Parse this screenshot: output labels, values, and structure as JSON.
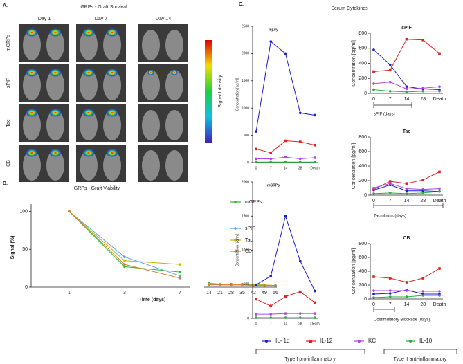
{
  "panel_a": {
    "label": "A.",
    "title": "GRPs - Graft Survival",
    "days": [
      "Day 1",
      "Day 7",
      "Day 14"
    ],
    "rows": [
      "mGRPs",
      "sPIF",
      "Tac",
      "CB"
    ],
    "colorbar_label": "Signal Intensity"
  },
  "panel_b_label": "B.",
  "panel_c_label": "C.",
  "panel_c_title": "Serum Cytokines",
  "legend": {
    "items": [
      {
        "name": "IL- 1α",
        "color": "#1a1ad4"
      },
      {
        "name": "IL-12",
        "color": "#e02222"
      },
      {
        "name": "KC",
        "color": "#b444e6"
      },
      {
        "name": "IL-10",
        "color": "#22b03a"
      }
    ],
    "groups": [
      "Type I pro-inflammatory",
      "Type II anti-inflammatory"
    ]
  },
  "chart_data": [
    {
      "type": "line",
      "title": "GRPs - Graft Viability",
      "y_label": "Signal (%)",
      "x_label": "Time (days)",
      "categories": [
        "1",
        "3",
        "7",
        "14",
        "21",
        "28",
        "35",
        "42",
        "49",
        "56"
      ],
      "ylim": [
        0,
        105
      ],
      "yticks": [
        0,
        50,
        100
      ],
      "series": [
        {
          "name": "mGRPs",
          "color": "#2eb82e",
          "values": [
            100,
            27,
            20,
            5,
            4,
            4,
            4,
            3,
            3,
            2
          ]
        },
        {
          "name": "sPIF",
          "color": "#5aa0e6",
          "values": [
            100,
            40,
            15,
            4,
            3,
            3,
            3,
            3,
            2,
            2
          ]
        },
        {
          "name": "Tac",
          "color": "#c8b400",
          "values": [
            100,
            35,
            30,
            4,
            4,
            3,
            3,
            3,
            3,
            2
          ]
        },
        {
          "name": "CB",
          "color": "#e07a20",
          "values": [
            100,
            30,
            12,
            3,
            3,
            3,
            3,
            2,
            2,
            2
          ]
        }
      ]
    },
    {
      "type": "line",
      "title": "Injury",
      "y_label": "Concentration [pg/ml]",
      "categories": [
        "0",
        "7",
        "14",
        "28",
        "Death"
      ],
      "ylim": [
        0,
        2500
      ],
      "yticks": [
        0,
        500,
        1000,
        1500,
        2000,
        2500
      ],
      "series": [
        {
          "values": [
            570,
            2220,
            2000,
            910,
            870
          ]
        },
        {
          "values": [
            250,
            180,
            400,
            380,
            320
          ]
        },
        {
          "values": [
            70,
            70,
            100,
            70,
            90
          ]
        },
        {
          "values": [
            10,
            10,
            10,
            10,
            10
          ]
        }
      ]
    },
    {
      "type": "line",
      "title": "mGRPs",
      "y_label": "Concentration [pg/ml]",
      "categories": [
        "0",
        "7",
        "14",
        "28",
        "Death"
      ],
      "ylim": [
        0,
        2000
      ],
      "yticks": [
        0,
        500,
        1000,
        1500,
        2000
      ],
      "series": [
        {
          "values": [
            490,
            620,
            1500,
            840,
            400
          ]
        },
        {
          "values": [
            280,
            180,
            320,
            390,
            230
          ]
        },
        {
          "values": [
            60,
            60,
            70,
            70,
            70
          ]
        },
        {
          "values": [
            10,
            10,
            10,
            10,
            10
          ]
        }
      ]
    },
    {
      "type": "line",
      "title": "sPIF",
      "y_label": "Concentration [pg/ml]",
      "x_label": "sPIF (days)",
      "categories": [
        "0",
        "7",
        "14",
        "28",
        "Death"
      ],
      "ylim": [
        0,
        800
      ],
      "yticks": [
        0,
        200,
        400,
        600,
        800
      ],
      "series": [
        {
          "values": [
            580,
            380,
            90,
            60,
            50
          ]
        },
        {
          "values": [
            290,
            310,
            720,
            710,
            530
          ]
        },
        {
          "values": [
            130,
            150,
            60,
            70,
            90
          ]
        },
        {
          "values": [
            50,
            30,
            20,
            30,
            30
          ]
        }
      ]
    },
    {
      "type": "line",
      "title": "Tac",
      "y_label": "Concentration [pg/ml]",
      "x_label": "Tacrolimus (days)",
      "categories": [
        "0",
        "7",
        "14",
        "28",
        "Death"
      ],
      "ylim": [
        0,
        800
      ],
      "yticks": [
        0,
        200,
        400,
        600,
        800
      ],
      "series": [
        {
          "values": [
            70,
            140,
            60,
            60,
            50
          ]
        },
        {
          "values": [
            80,
            190,
            160,
            210,
            320
          ]
        },
        {
          "values": [
            100,
            160,
            90,
            80,
            90
          ]
        },
        {
          "values": [
            20,
            30,
            20,
            30,
            50
          ]
        }
      ]
    },
    {
      "type": "line",
      "title": "CB",
      "y_label": "Concentration [pg/ml]",
      "x_label": "Costimulatory Blockade (days)",
      "categories": [
        "0",
        "7",
        "14",
        "28",
        "Death"
      ],
      "ylim": [
        0,
        800
      ],
      "yticks": [
        0,
        200,
        400,
        600,
        800
      ],
      "series": [
        {
          "values": [
            70,
            80,
            130,
            70,
            70
          ]
        },
        {
          "values": [
            320,
            300,
            240,
            300,
            440
          ]
        },
        {
          "values": [
            120,
            120,
            120,
            110,
            110
          ]
        },
        {
          "values": [
            20,
            30,
            30,
            50,
            50
          ]
        }
      ]
    }
  ]
}
